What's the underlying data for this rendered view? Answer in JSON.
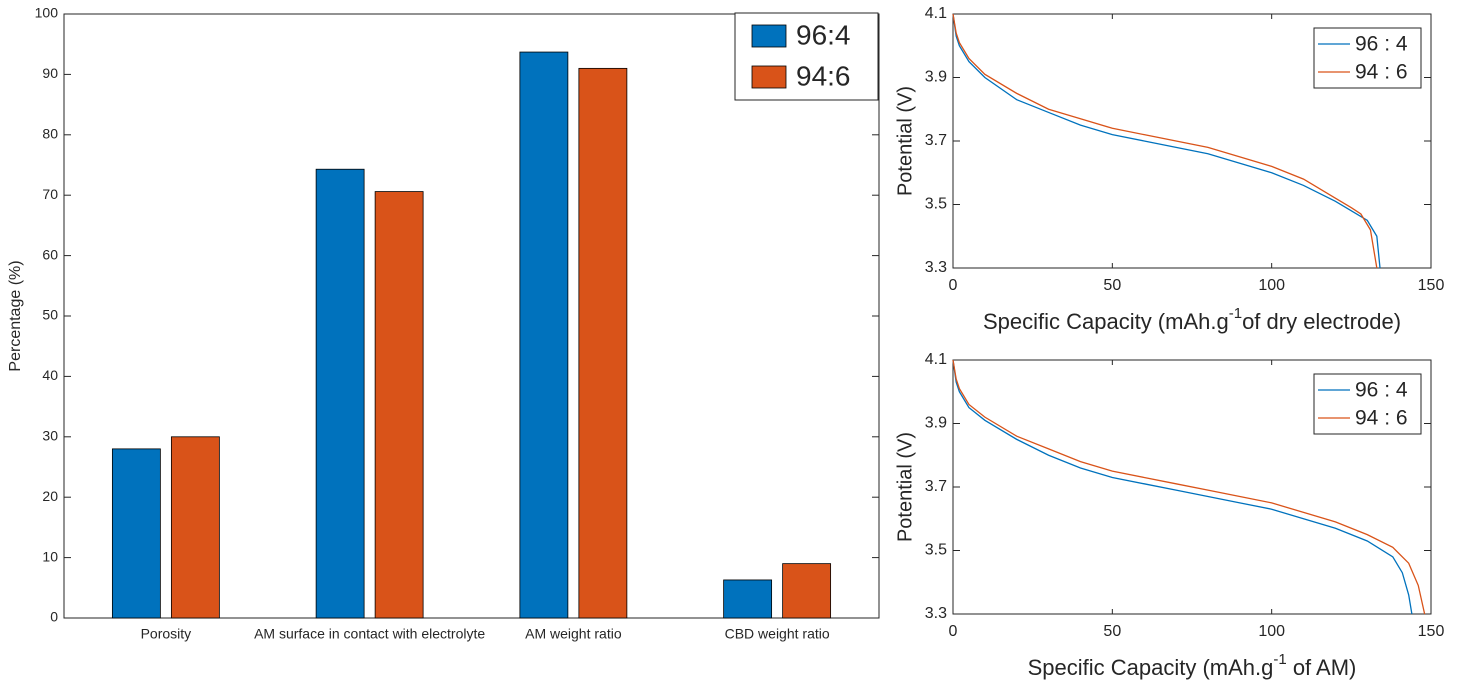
{
  "chart_data": [
    {
      "type": "bar",
      "ylabel": "Percentage (%)",
      "categories": [
        "Porosity",
        "AM surface in contact with electrolyte",
        "AM weight ratio",
        "CBD weight ratio"
      ],
      "series": [
        {
          "name": "96:4",
          "color": "#0072BD",
          "values": [
            28,
            74.3,
            93.7,
            6.3
          ]
        },
        {
          "name": "94:6",
          "color": "#D95319",
          "values": [
            30,
            70.6,
            91,
            9
          ]
        }
      ],
      "ylim": [
        0,
        100
      ],
      "yticks": [
        0,
        10,
        20,
        30,
        40,
        50,
        60,
        70,
        80,
        90,
        100
      ],
      "legend": "northeast"
    },
    {
      "type": "line",
      "ylabel": "Potential (V)",
      "xlabel": [
        "Specific Capacity (mAh.g",
        "-1",
        "of dry electrode)"
      ],
      "series": [
        {
          "name": "96 : 4",
          "color": "#0072BD",
          "x": [
            0,
            1,
            2,
            5,
            10,
            20,
            30,
            40,
            50,
            60,
            70,
            80,
            90,
            100,
            110,
            120,
            125,
            130,
            133,
            134
          ],
          "values": [
            4.1,
            4.03,
            4.0,
            3.95,
            3.9,
            3.83,
            3.79,
            3.75,
            3.72,
            3.7,
            3.68,
            3.66,
            3.63,
            3.6,
            3.56,
            3.51,
            3.48,
            3.45,
            3.4,
            3.3
          ]
        },
        {
          "name": "94 : 6",
          "color": "#D95319",
          "x": [
            0,
            1,
            2,
            5,
            10,
            20,
            30,
            40,
            50,
            60,
            70,
            80,
            90,
            100,
            110,
            120,
            125,
            128,
            131,
            133
          ],
          "values": [
            4.1,
            4.04,
            4.01,
            3.96,
            3.91,
            3.85,
            3.8,
            3.77,
            3.74,
            3.72,
            3.7,
            3.68,
            3.65,
            3.62,
            3.58,
            3.52,
            3.49,
            3.47,
            3.42,
            3.3
          ]
        }
      ],
      "xlim": [
        0,
        150
      ],
      "xticks": [
        0,
        50,
        100,
        150
      ],
      "ylim": [
        3.3,
        4.1
      ],
      "yticks": [
        3.3,
        3.5,
        3.7,
        3.9,
        4.1
      ],
      "legend": "northeast"
    },
    {
      "type": "line",
      "ylabel": "Potential (V)",
      "xlabel": [
        "Specific Capacity (mAh.g",
        "-1",
        " of AM)"
      ],
      "series": [
        {
          "name": "96 : 4",
          "color": "#0072BD",
          "x": [
            0,
            1,
            2,
            5,
            10,
            20,
            30,
            40,
            50,
            60,
            70,
            80,
            90,
            100,
            110,
            120,
            130,
            138,
            141,
            143,
            144
          ],
          "values": [
            4.1,
            4.03,
            4.0,
            3.95,
            3.91,
            3.85,
            3.8,
            3.76,
            3.73,
            3.71,
            3.69,
            3.67,
            3.65,
            3.63,
            3.6,
            3.57,
            3.53,
            3.48,
            3.43,
            3.36,
            3.3
          ]
        },
        {
          "name": "94 : 6",
          "color": "#D95319",
          "x": [
            0,
            1,
            2,
            5,
            10,
            20,
            30,
            40,
            50,
            60,
            70,
            80,
            90,
            100,
            110,
            120,
            130,
            138,
            143,
            146,
            148
          ],
          "values": [
            4.1,
            4.04,
            4.01,
            3.96,
            3.92,
            3.86,
            3.82,
            3.78,
            3.75,
            3.73,
            3.71,
            3.69,
            3.67,
            3.65,
            3.62,
            3.59,
            3.55,
            3.51,
            3.46,
            3.39,
            3.3
          ]
        }
      ],
      "xlim": [
        0,
        150
      ],
      "xticks": [
        0,
        50,
        100,
        150
      ],
      "ylim": [
        3.3,
        4.1
      ],
      "yticks": [
        3.3,
        3.5,
        3.7,
        3.9,
        4.1
      ],
      "legend": "northeast"
    }
  ]
}
